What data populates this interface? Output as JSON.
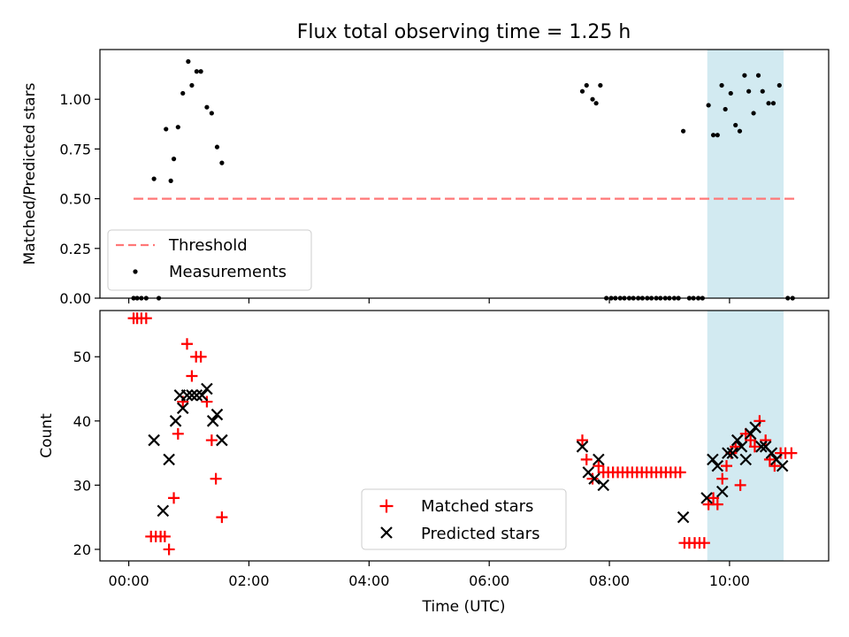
{
  "chart_data": {
    "title": "Flux total observing time = 1.25 h",
    "xlabel": "Time (UTC)",
    "x_unit": "hours since 00:00 UTC",
    "xlim": [
      -0.48,
      11.65
    ],
    "x_ticks": [
      0,
      2,
      4,
      6,
      8,
      10
    ],
    "x_tick_labels": [
      "00:00",
      "02:00",
      "04:00",
      "06:00",
      "08:00",
      "10:00"
    ],
    "highlight_span": {
      "x": [
        9.63,
        10.9
      ],
      "color": "#add8e6"
    },
    "panels": [
      {
        "type": "scatter",
        "name": "ratio",
        "ylabel": "Matched/Predicted stars",
        "ylim": [
          0,
          1.25
        ],
        "y_ticks": [
          0,
          0.25,
          0.5,
          0.75,
          1.0
        ],
        "y_tick_labels": [
          "0.00",
          "0.25",
          "0.50",
          "0.75",
          "1.00"
        ],
        "threshold": {
          "value": 0.5,
          "x_range": [
            0.08,
            11.08
          ],
          "label": "Threshold",
          "color": "#ff7777"
        },
        "series": [
          {
            "name": "Measurements",
            "marker": "dot",
            "color": "#000000",
            "points": [
              [
                0.08,
                0
              ],
              [
                0.14,
                0
              ],
              [
                0.21,
                0
              ],
              [
                0.29,
                0
              ],
              [
                0.5,
                0
              ],
              [
                0.42,
                0.6
              ],
              [
                0.62,
                0.85
              ],
              [
                0.7,
                0.59
              ],
              [
                0.75,
                0.7
              ],
              [
                0.82,
                0.86
              ],
              [
                0.9,
                1.03
              ],
              [
                0.99,
                1.19
              ],
              [
                1.05,
                1.07
              ],
              [
                1.13,
                1.14
              ],
              [
                1.2,
                1.14
              ],
              [
                1.3,
                0.96
              ],
              [
                1.38,
                0.93
              ],
              [
                1.47,
                0.76
              ],
              [
                1.55,
                0.68
              ],
              [
                7.55,
                1.04
              ],
              [
                7.62,
                1.07
              ],
              [
                7.72,
                1.0
              ],
              [
                7.78,
                0.98
              ],
              [
                7.85,
                1.07
              ],
              [
                7.95,
                0
              ],
              [
                8.03,
                0
              ],
              [
                8.1,
                0
              ],
              [
                8.18,
                0
              ],
              [
                8.25,
                0
              ],
              [
                8.33,
                0
              ],
              [
                8.4,
                0
              ],
              [
                8.48,
                0
              ],
              [
                8.55,
                0
              ],
              [
                8.63,
                0
              ],
              [
                8.7,
                0
              ],
              [
                8.78,
                0
              ],
              [
                8.85,
                0
              ],
              [
                8.93,
                0
              ],
              [
                9.0,
                0
              ],
              [
                9.08,
                0
              ],
              [
                9.15,
                0
              ],
              [
                9.33,
                0
              ],
              [
                9.4,
                0
              ],
              [
                9.48,
                0
              ],
              [
                9.55,
                0
              ],
              [
                10.97,
                0
              ],
              [
                11.05,
                0
              ],
              [
                9.23,
                0.84
              ],
              [
                9.65,
                0.97
              ],
              [
                9.73,
                0.82
              ],
              [
                9.8,
                0.82
              ],
              [
                9.87,
                1.07
              ],
              [
                9.93,
                0.95
              ],
              [
                10.02,
                1.03
              ],
              [
                10.1,
                0.87
              ],
              [
                10.17,
                0.84
              ],
              [
                10.25,
                1.12
              ],
              [
                10.32,
                1.04
              ],
              [
                10.4,
                0.93
              ],
              [
                10.48,
                1.12
              ],
              [
                10.55,
                1.04
              ],
              [
                10.65,
                0.98
              ],
              [
                10.73,
                0.98
              ],
              [
                10.83,
                1.07
              ]
            ]
          }
        ],
        "legend": {
          "position": "lower-left",
          "entries": [
            "Threshold",
            "Measurements"
          ]
        }
      },
      {
        "type": "scatter",
        "name": "counts",
        "ylabel": "Count",
        "ylim": [
          18.2,
          57.2
        ],
        "y_ticks": [
          20,
          30,
          40,
          50
        ],
        "y_tick_labels": [
          "20",
          "30",
          "40",
          "50"
        ],
        "series": [
          {
            "name": "Matched stars",
            "marker": "plus",
            "color": "#ff0000",
            "points": [
              [
                0.08,
                56
              ],
              [
                0.14,
                56
              ],
              [
                0.21,
                56
              ],
              [
                0.29,
                56
              ],
              [
                0.37,
                22
              ],
              [
                0.45,
                22
              ],
              [
                0.53,
                22
              ],
              [
                0.6,
                22
              ],
              [
                0.67,
                20
              ],
              [
                0.75,
                28
              ],
              [
                0.82,
                38
              ],
              [
                0.9,
                43
              ],
              [
                0.97,
                52
              ],
              [
                1.05,
                47
              ],
              [
                1.12,
                50
              ],
              [
                1.2,
                50
              ],
              [
                1.3,
                43
              ],
              [
                1.38,
                37
              ],
              [
                1.45,
                31
              ],
              [
                1.55,
                25
              ],
              [
                7.55,
                37
              ],
              [
                7.62,
                34
              ],
              [
                7.72,
                31
              ],
              [
                7.82,
                33
              ],
              [
                7.9,
                32
              ],
              [
                7.98,
                32
              ],
              [
                8.06,
                32
              ],
              [
                8.14,
                32
              ],
              [
                8.22,
                32
              ],
              [
                8.3,
                32
              ],
              [
                8.38,
                32
              ],
              [
                8.46,
                32
              ],
              [
                8.54,
                32
              ],
              [
                8.62,
                32
              ],
              [
                8.7,
                32
              ],
              [
                8.78,
                32
              ],
              [
                8.86,
                32
              ],
              [
                8.94,
                32
              ],
              [
                9.02,
                32
              ],
              [
                9.1,
                32
              ],
              [
                9.18,
                32
              ],
              [
                9.25,
                21
              ],
              [
                9.33,
                21
              ],
              [
                9.42,
                21
              ],
              [
                9.5,
                21
              ],
              [
                9.58,
                21
              ],
              [
                9.65,
                27
              ],
              [
                9.73,
                28
              ],
              [
                9.8,
                27
              ],
              [
                9.88,
                31
              ],
              [
                9.95,
                33
              ],
              [
                10.03,
                35
              ],
              [
                10.1,
                36
              ],
              [
                10.18,
                30
              ],
              [
                10.27,
                38
              ],
              [
                10.35,
                37
              ],
              [
                10.42,
                36
              ],
              [
                10.5,
                40
              ],
              [
                10.6,
                37
              ],
              [
                10.67,
                34
              ],
              [
                10.75,
                33
              ],
              [
                10.85,
                35
              ],
              [
                10.93,
                35
              ],
              [
                11.03,
                35
              ]
            ]
          },
          {
            "name": "Predicted stars",
            "marker": "x",
            "color": "#000000",
            "points": [
              [
                0.42,
                37
              ],
              [
                0.57,
                26
              ],
              [
                0.67,
                34
              ],
              [
                0.78,
                40
              ],
              [
                0.85,
                44
              ],
              [
                0.9,
                42
              ],
              [
                0.97,
                44
              ],
              [
                1.05,
                44
              ],
              [
                1.13,
                44
              ],
              [
                1.22,
                44
              ],
              [
                1.3,
                45
              ],
              [
                1.4,
                40
              ],
              [
                1.47,
                41
              ],
              [
                1.55,
                37
              ],
              [
                7.55,
                36
              ],
              [
                7.65,
                32
              ],
              [
                7.75,
                31
              ],
              [
                7.82,
                34
              ],
              [
                7.9,
                30
              ],
              [
                9.23,
                25
              ],
              [
                9.62,
                28
              ],
              [
                9.72,
                34
              ],
              [
                9.8,
                33
              ],
              [
                9.88,
                29
              ],
              [
                9.97,
                35
              ],
              [
                10.05,
                35
              ],
              [
                10.13,
                37
              ],
              [
                10.2,
                36
              ],
              [
                10.27,
                34
              ],
              [
                10.35,
                38
              ],
              [
                10.43,
                39
              ],
              [
                10.53,
                36
              ],
              [
                10.6,
                36
              ],
              [
                10.7,
                35
              ],
              [
                10.78,
                34
              ],
              [
                10.88,
                33
              ]
            ]
          }
        ],
        "legend": {
          "position": "lower-center",
          "entries": [
            "Matched stars",
            "Predicted stars"
          ]
        }
      }
    ]
  }
}
